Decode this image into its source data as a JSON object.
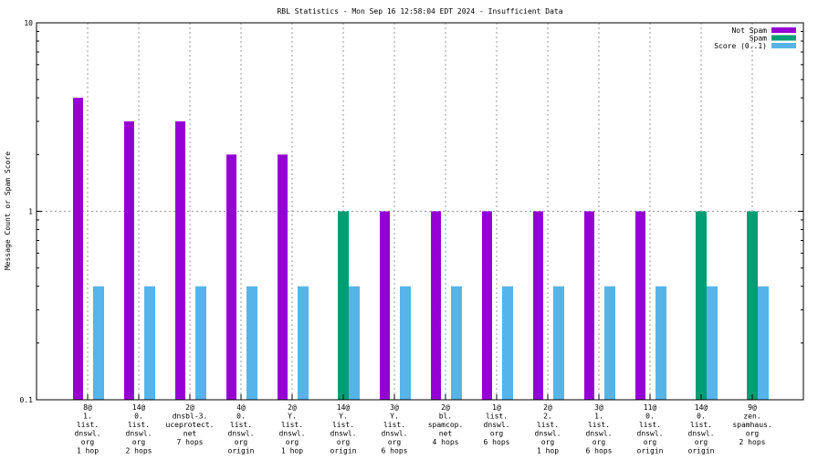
{
  "chart_data": {
    "type": "bar",
    "title": "RBL Statistics - Mon Sep 16 12:58:04 EDT 2024 - Insufficient Data",
    "ylabel": "Message Count or Spam Score",
    "xlabel": "",
    "yscale": "log",
    "ylim": [
      0.1,
      10
    ],
    "yticks": [
      "10",
      "1",
      "0.1"
    ],
    "grid": true,
    "legend_position": "top-right",
    "categories": [
      [
        "8@",
        "1.",
        "list.",
        "dnswl.",
        "org",
        "1 hop"
      ],
      [
        "14@",
        "0.",
        "list.",
        "dnswl.",
        "org",
        "2 hops"
      ],
      [
        "2@",
        "dnsbl-3.",
        "uceprotect.",
        "net",
        "7 hops"
      ],
      [
        "4@",
        "0.",
        "list.",
        "dnswl.",
        "org",
        "origin"
      ],
      [
        "2@",
        "Y.",
        "list.",
        "dnswl.",
        "org",
        "1 hop"
      ],
      [
        "14@",
        "Y.",
        "list.",
        "dnswl.",
        "org",
        "origin"
      ],
      [
        "3@",
        "Y.",
        "list.",
        "dnswl.",
        "org",
        "6 hops"
      ],
      [
        "2@",
        "bl.",
        "spamcop.",
        "net",
        "4 hops"
      ],
      [
        "1@",
        "list.",
        "dnswl.",
        "org",
        "6 hops"
      ],
      [
        "2@",
        "2.",
        "list.",
        "dnswl.",
        "org",
        "1 hop"
      ],
      [
        "3@",
        "1.",
        "list.",
        "dnswl.",
        "org",
        "6 hops"
      ],
      [
        "11@",
        "0.",
        "list.",
        "dnswl.",
        "org",
        "origin"
      ],
      [
        "14@",
        "0.",
        "list.",
        "dnswl.",
        "org",
        "origin"
      ],
      [
        "9@",
        "zen.",
        "spamhaus.",
        "org",
        "2 hops"
      ]
    ],
    "series": [
      {
        "name": "Not Spam",
        "color": "#9400d3",
        "values": [
          4,
          3,
          3,
          2,
          2,
          0,
          1,
          1,
          1,
          1,
          1,
          1,
          0,
          0
        ]
      },
      {
        "name": "Spam",
        "color": "#009e73",
        "values": [
          0,
          0,
          0,
          0,
          0,
          1,
          0,
          0,
          0,
          0,
          0,
          0,
          1,
          1
        ]
      },
      {
        "name": "Score (0..1)",
        "color": "#56b4e9",
        "values": [
          0.4,
          0.4,
          0.4,
          0.4,
          0.4,
          0.4,
          0.4,
          0.4,
          0.4,
          0.4,
          0.4,
          0.4,
          0.4,
          0.4
        ]
      }
    ]
  }
}
